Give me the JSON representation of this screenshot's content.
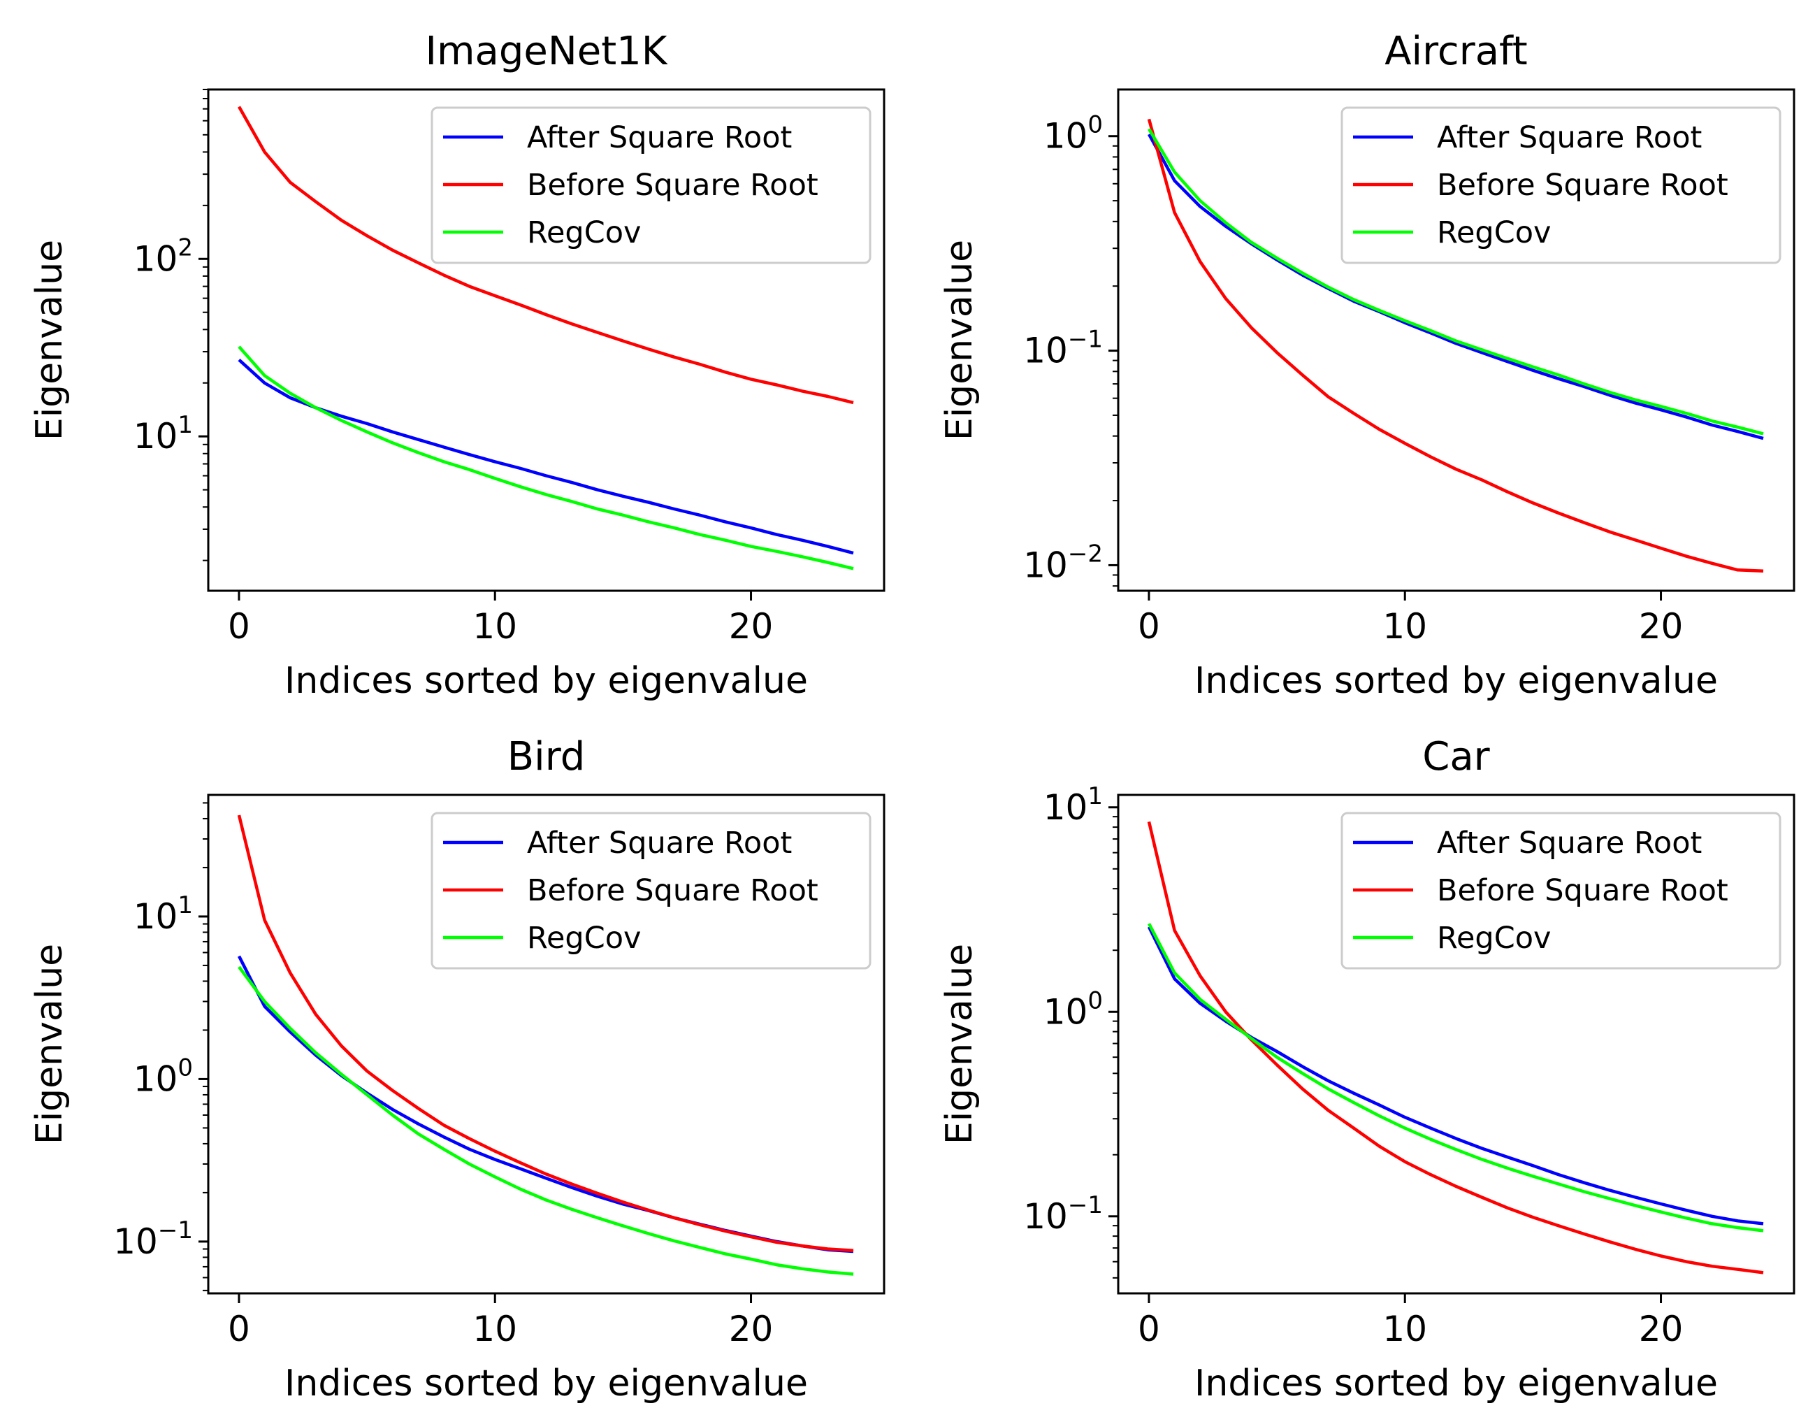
{
  "chart_data": [
    {
      "type": "line",
      "title": "ImageNet1K",
      "xlabel": "Indices sorted by eigenvalue",
      "ylabel": "Eigenvalue",
      "yscale": "log",
      "ylim": [
        1.35,
        900
      ],
      "xlim": [
        -1.2,
        25.2
      ],
      "xticks": [
        0,
        10,
        20
      ],
      "yticks": [
        {
          "base": "10",
          "exp": "1",
          "value": 10
        },
        {
          "base": "10",
          "exp": "2",
          "value": 100
        }
      ],
      "legend_position": "top-right",
      "x": [
        0,
        1,
        2,
        3,
        4,
        5,
        6,
        7,
        8,
        9,
        10,
        11,
        12,
        13,
        14,
        15,
        16,
        17,
        18,
        19,
        20,
        21,
        22,
        23,
        24
      ],
      "series": [
        {
          "name": "After Square Root",
          "color": "#0000ff",
          "values": [
            27,
            20,
            16.5,
            14.5,
            13,
            11.8,
            10.6,
            9.6,
            8.7,
            7.9,
            7.2,
            6.6,
            6.0,
            5.5,
            5.0,
            4.6,
            4.25,
            3.9,
            3.6,
            3.3,
            3.05,
            2.8,
            2.6,
            2.4,
            2.2
          ]
        },
        {
          "name": "Before Square Root",
          "color": "#ff0000",
          "values": [
            720,
            400,
            270,
            210,
            165,
            135,
            112,
            95,
            81,
            70,
            62,
            55,
            48.5,
            43,
            38.5,
            34.5,
            31,
            28,
            25.5,
            23,
            21,
            19.5,
            18,
            16.8,
            15.5
          ]
        },
        {
          "name": "RegCov",
          "color": "#00ff00",
          "values": [
            32,
            22,
            17.5,
            14.5,
            12.3,
            10.6,
            9.2,
            8.1,
            7.2,
            6.5,
            5.8,
            5.2,
            4.7,
            4.3,
            3.9,
            3.6,
            3.3,
            3.05,
            2.8,
            2.6,
            2.4,
            2.25,
            2.1,
            1.95,
            1.8
          ]
        }
      ]
    },
    {
      "type": "line",
      "title": "Aircraft",
      "xlabel": "Indices sorted by eigenvalue",
      "ylabel": "Eigenvalue",
      "yscale": "log",
      "ylim": [
        0.0076,
        1.65
      ],
      "xlim": [
        -1.2,
        25.2
      ],
      "xticks": [
        0,
        10,
        20
      ],
      "yticks": [
        {
          "base": "10",
          "exp": "−2",
          "value": 0.01
        },
        {
          "base": "10",
          "exp": "−1",
          "value": 0.1
        },
        {
          "base": "10",
          "exp": "0",
          "value": 1
        }
      ],
      "legend_position": "top-right",
      "x": [
        0,
        1,
        2,
        3,
        4,
        5,
        6,
        7,
        8,
        9,
        10,
        11,
        12,
        13,
        14,
        15,
        16,
        17,
        18,
        19,
        20,
        21,
        22,
        23,
        24
      ],
      "series": [
        {
          "name": "After Square Root",
          "color": "#0000ff",
          "values": [
            1.02,
            0.62,
            0.47,
            0.38,
            0.315,
            0.265,
            0.225,
            0.195,
            0.17,
            0.152,
            0.135,
            0.121,
            0.108,
            0.098,
            0.089,
            0.081,
            0.074,
            0.068,
            0.062,
            0.057,
            0.053,
            0.049,
            0.045,
            0.042,
            0.039
          ]
        },
        {
          "name": "Before Square Root",
          "color": "#ff0000",
          "values": [
            1.2,
            0.44,
            0.26,
            0.175,
            0.128,
            0.098,
            0.077,
            0.061,
            0.051,
            0.043,
            0.037,
            0.032,
            0.028,
            0.025,
            0.022,
            0.0195,
            0.0175,
            0.0158,
            0.0143,
            0.0131,
            0.012,
            0.011,
            0.0102,
            0.0095,
            0.0094
          ]
        },
        {
          "name": "RegCov",
          "color": "#00ff00",
          "values": [
            1.08,
            0.68,
            0.5,
            0.395,
            0.32,
            0.27,
            0.23,
            0.198,
            0.173,
            0.154,
            0.138,
            0.124,
            0.111,
            0.101,
            0.092,
            0.084,
            0.077,
            0.07,
            0.064,
            0.059,
            0.055,
            0.051,
            0.047,
            0.044,
            0.041
          ]
        }
      ]
    },
    {
      "type": "line",
      "title": "Bird",
      "xlabel": "Indices sorted by eigenvalue",
      "ylabel": "Eigenvalue",
      "yscale": "log",
      "ylim": [
        0.048,
        56
      ],
      "xlim": [
        -1.2,
        25.2
      ],
      "xticks": [
        0,
        10,
        20
      ],
      "yticks": [
        {
          "base": "10",
          "exp": "−1",
          "value": 0.1
        },
        {
          "base": "10",
          "exp": "0",
          "value": 1
        },
        {
          "base": "10",
          "exp": "1",
          "value": 10
        }
      ],
      "legend_position": "top-right",
      "x": [
        0,
        1,
        2,
        3,
        4,
        5,
        6,
        7,
        8,
        9,
        10,
        11,
        12,
        13,
        14,
        15,
        16,
        17,
        18,
        19,
        20,
        21,
        22,
        23,
        24
      ],
      "series": [
        {
          "name": "After Square Root",
          "color": "#0000ff",
          "values": [
            5.7,
            2.8,
            1.95,
            1.4,
            1.05,
            0.82,
            0.65,
            0.53,
            0.44,
            0.37,
            0.32,
            0.28,
            0.245,
            0.215,
            0.19,
            0.17,
            0.155,
            0.14,
            0.128,
            0.117,
            0.108,
            0.1,
            0.094,
            0.089,
            0.087
          ]
        },
        {
          "name": "Before Square Root",
          "color": "#ff0000",
          "values": [
            42,
            9.5,
            4.5,
            2.5,
            1.6,
            1.12,
            0.85,
            0.66,
            0.52,
            0.43,
            0.36,
            0.305,
            0.26,
            0.226,
            0.198,
            0.175,
            0.156,
            0.14,
            0.127,
            0.116,
            0.107,
            0.099,
            0.094,
            0.09,
            0.088
          ]
        },
        {
          "name": "RegCov",
          "color": "#00ff00",
          "values": [
            4.9,
            3.0,
            2.05,
            1.45,
            1.07,
            0.8,
            0.6,
            0.46,
            0.37,
            0.3,
            0.25,
            0.21,
            0.18,
            0.158,
            0.14,
            0.125,
            0.112,
            0.101,
            0.092,
            0.084,
            0.078,
            0.072,
            0.068,
            0.065,
            0.063
          ]
        }
      ]
    },
    {
      "type": "line",
      "title": "Car",
      "xlabel": "Indices sorted by eigenvalue",
      "ylabel": "Eigenvalue",
      "yscale": "log",
      "ylim": [
        0.042,
        11.5
      ],
      "xlim": [
        -1.2,
        25.2
      ],
      "xticks": [
        0,
        10,
        20
      ],
      "yticks": [
        {
          "base": "10",
          "exp": "−1",
          "value": 0.1
        },
        {
          "base": "10",
          "exp": "0",
          "value": 1
        },
        {
          "base": "10",
          "exp": "1",
          "value": 10
        }
      ],
      "legend_position": "top-right",
      "x": [
        0,
        1,
        2,
        3,
        4,
        5,
        6,
        7,
        8,
        9,
        10,
        11,
        12,
        13,
        14,
        15,
        16,
        17,
        18,
        19,
        20,
        21,
        22,
        23,
        24
      ],
      "series": [
        {
          "name": "After Square Root",
          "color": "#0000ff",
          "values": [
            2.6,
            1.45,
            1.1,
            0.9,
            0.75,
            0.64,
            0.54,
            0.46,
            0.4,
            0.35,
            0.305,
            0.27,
            0.24,
            0.215,
            0.195,
            0.177,
            0.16,
            0.146,
            0.134,
            0.124,
            0.115,
            0.107,
            0.1,
            0.095,
            0.092
          ]
        },
        {
          "name": "Before Square Root",
          "color": "#ff0000",
          "values": [
            8.5,
            2.5,
            1.5,
            1.0,
            0.73,
            0.55,
            0.42,
            0.33,
            0.27,
            0.22,
            0.185,
            0.16,
            0.14,
            0.124,
            0.11,
            0.099,
            0.09,
            0.082,
            0.075,
            0.069,
            0.064,
            0.06,
            0.057,
            0.055,
            0.053
          ]
        },
        {
          "name": "RegCov",
          "color": "#00ff00",
          "values": [
            2.7,
            1.55,
            1.15,
            0.92,
            0.74,
            0.6,
            0.5,
            0.42,
            0.36,
            0.31,
            0.27,
            0.238,
            0.212,
            0.19,
            0.172,
            0.157,
            0.144,
            0.132,
            0.122,
            0.113,
            0.105,
            0.098,
            0.092,
            0.088,
            0.085
          ]
        }
      ]
    }
  ]
}
